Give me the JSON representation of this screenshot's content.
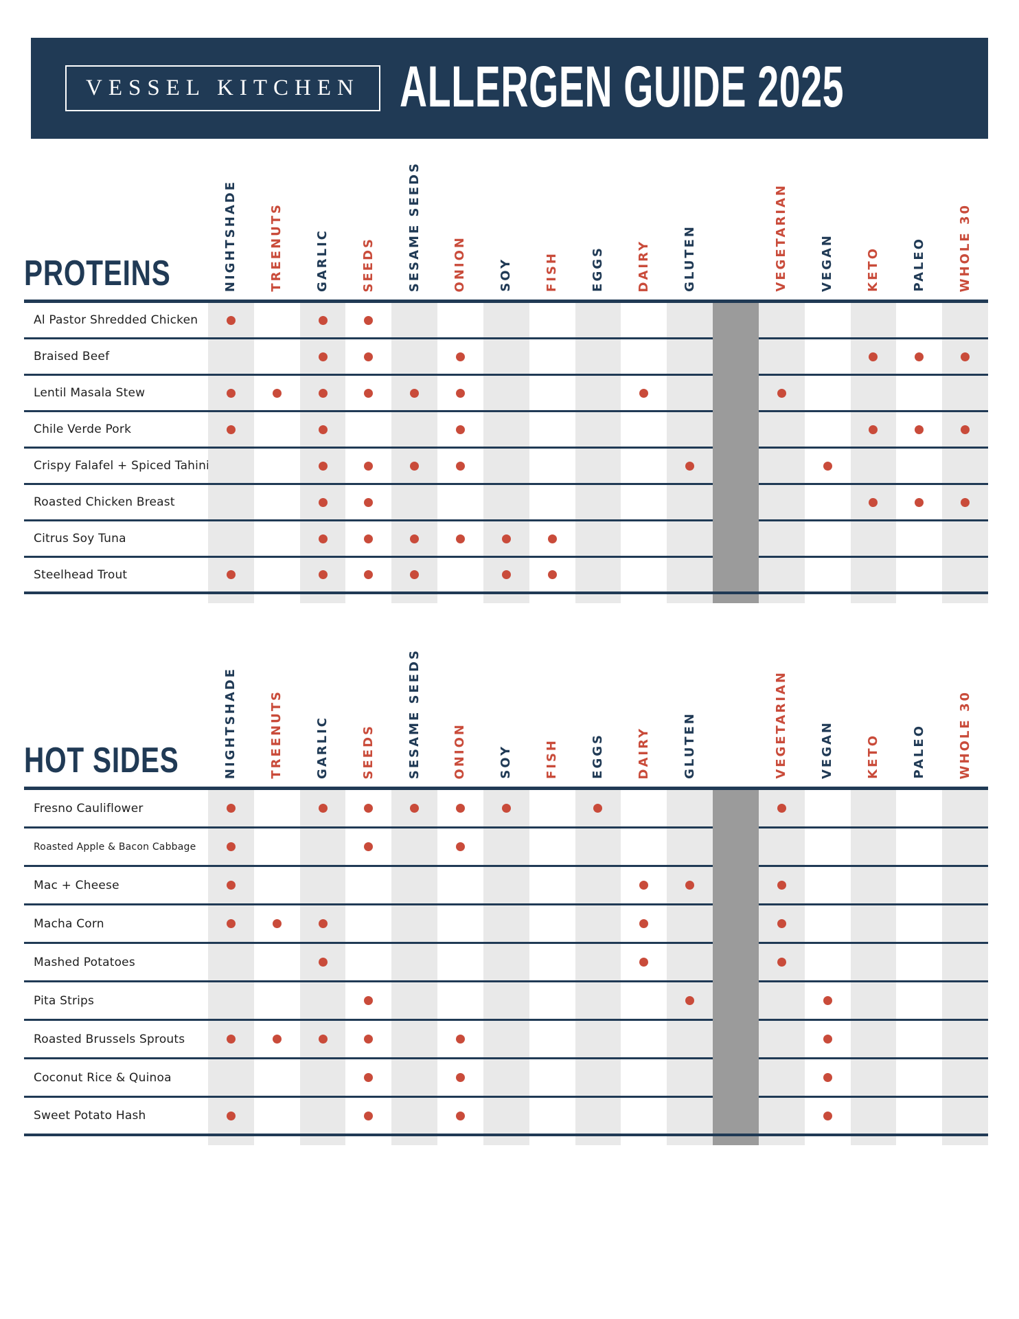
{
  "header": {
    "brand": "VESSEL KITCHEN",
    "title": "ALLERGEN GUIDE 2025"
  },
  "colors": {
    "navy": "#203a55",
    "red": "#c94b3a",
    "stripe": "#e9e9e9",
    "separator": "#9b9b9b",
    "background": "#ffffff"
  },
  "columns": {
    "allergens": [
      {
        "label": "NIGHTSHADE",
        "color": "navy"
      },
      {
        "label": "TREENUTS",
        "color": "red"
      },
      {
        "label": "GARLIC",
        "color": "navy"
      },
      {
        "label": "SEEDS",
        "color": "red"
      },
      {
        "label": "SESAME SEEDS",
        "color": "navy"
      },
      {
        "label": "ONION",
        "color": "red"
      },
      {
        "label": "SOY",
        "color": "navy"
      },
      {
        "label": "FISH",
        "color": "red"
      },
      {
        "label": "EGGS",
        "color": "navy"
      },
      {
        "label": "DAIRY",
        "color": "red"
      },
      {
        "label": "GLUTEN",
        "color": "navy"
      }
    ],
    "diets": [
      {
        "label": "VEGETARIAN",
        "color": "red"
      },
      {
        "label": "VEGAN",
        "color": "navy"
      },
      {
        "label": "KETO",
        "color": "red"
      },
      {
        "label": "PALEO",
        "color": "navy"
      },
      {
        "label": "WHOLE 30",
        "color": "red"
      }
    ]
  },
  "sections": [
    {
      "id": "proteins",
      "title": "PROTEINS",
      "rows": [
        {
          "label": "Al Pastor Shredded Chicken",
          "marks": [
            "NIGHTSHADE",
            "GARLIC",
            "SEEDS"
          ]
        },
        {
          "label": "Braised Beef",
          "marks": [
            "GARLIC",
            "SEEDS",
            "ONION",
            "KETO",
            "PALEO",
            "WHOLE 30"
          ]
        },
        {
          "label": "Lentil Masala Stew",
          "marks": [
            "NIGHTSHADE",
            "TREENUTS",
            "GARLIC",
            "SEEDS",
            "SESAME SEEDS",
            "ONION",
            "DAIRY",
            "VEGETARIAN"
          ]
        },
        {
          "label": "Chile Verde Pork",
          "marks": [
            "NIGHTSHADE",
            "GARLIC",
            "ONION",
            "KETO",
            "PALEO",
            "WHOLE 30"
          ]
        },
        {
          "label": "Crispy Falafel + Spiced Tahini",
          "marks": [
            "GARLIC",
            "SEEDS",
            "SESAME SEEDS",
            "ONION",
            "GLUTEN",
            "VEGAN"
          ]
        },
        {
          "label": "Roasted Chicken Breast",
          "marks": [
            "GARLIC",
            "SEEDS",
            "KETO",
            "PALEO",
            "WHOLE 30"
          ]
        },
        {
          "label": "Citrus Soy Tuna",
          "marks": [
            "GARLIC",
            "SEEDS",
            "SESAME SEEDS",
            "ONION",
            "SOY",
            "FISH"
          ]
        },
        {
          "label": "Steelhead Trout",
          "marks": [
            "NIGHTSHADE",
            "GARLIC",
            "SEEDS",
            "SESAME SEEDS",
            "SOY",
            "FISH"
          ]
        }
      ]
    },
    {
      "id": "hot-sides",
      "title": "HOT SIDES",
      "rows": [
        {
          "label": "Fresno Cauliflower",
          "marks": [
            "NIGHTSHADE",
            "GARLIC",
            "SEEDS",
            "SESAME SEEDS",
            "ONION",
            "SOY",
            "EGGS",
            "VEGETARIAN"
          ]
        },
        {
          "label": "Roasted Apple & Bacon Cabbage",
          "small": true,
          "marks": [
            "NIGHTSHADE",
            "SEEDS",
            "ONION"
          ]
        },
        {
          "label": "Mac + Cheese",
          "marks": [
            "NIGHTSHADE",
            "DAIRY",
            "GLUTEN",
            "VEGETARIAN"
          ]
        },
        {
          "label": "Macha Corn",
          "marks": [
            "NIGHTSHADE",
            "TREENUTS",
            "GARLIC",
            "DAIRY",
            "VEGETARIAN"
          ]
        },
        {
          "label": "Mashed Potatoes",
          "marks": [
            "GARLIC",
            "DAIRY",
            "VEGETARIAN"
          ]
        },
        {
          "label": "Pita Strips",
          "marks": [
            "SEEDS",
            "GLUTEN",
            "VEGAN"
          ]
        },
        {
          "label": "Roasted Brussels Sprouts",
          "marks": [
            "NIGHTSHADE",
            "TREENUTS",
            "GARLIC",
            "SEEDS",
            "ONION",
            "VEGAN"
          ]
        },
        {
          "label": "Coconut Rice & Quinoa",
          "marks": [
            "SEEDS",
            "ONION",
            "VEGAN"
          ]
        },
        {
          "label": "Sweet Potato Hash",
          "marks": [
            "NIGHTSHADE",
            "SEEDS",
            "ONION",
            "VEGAN"
          ]
        }
      ]
    }
  ]
}
